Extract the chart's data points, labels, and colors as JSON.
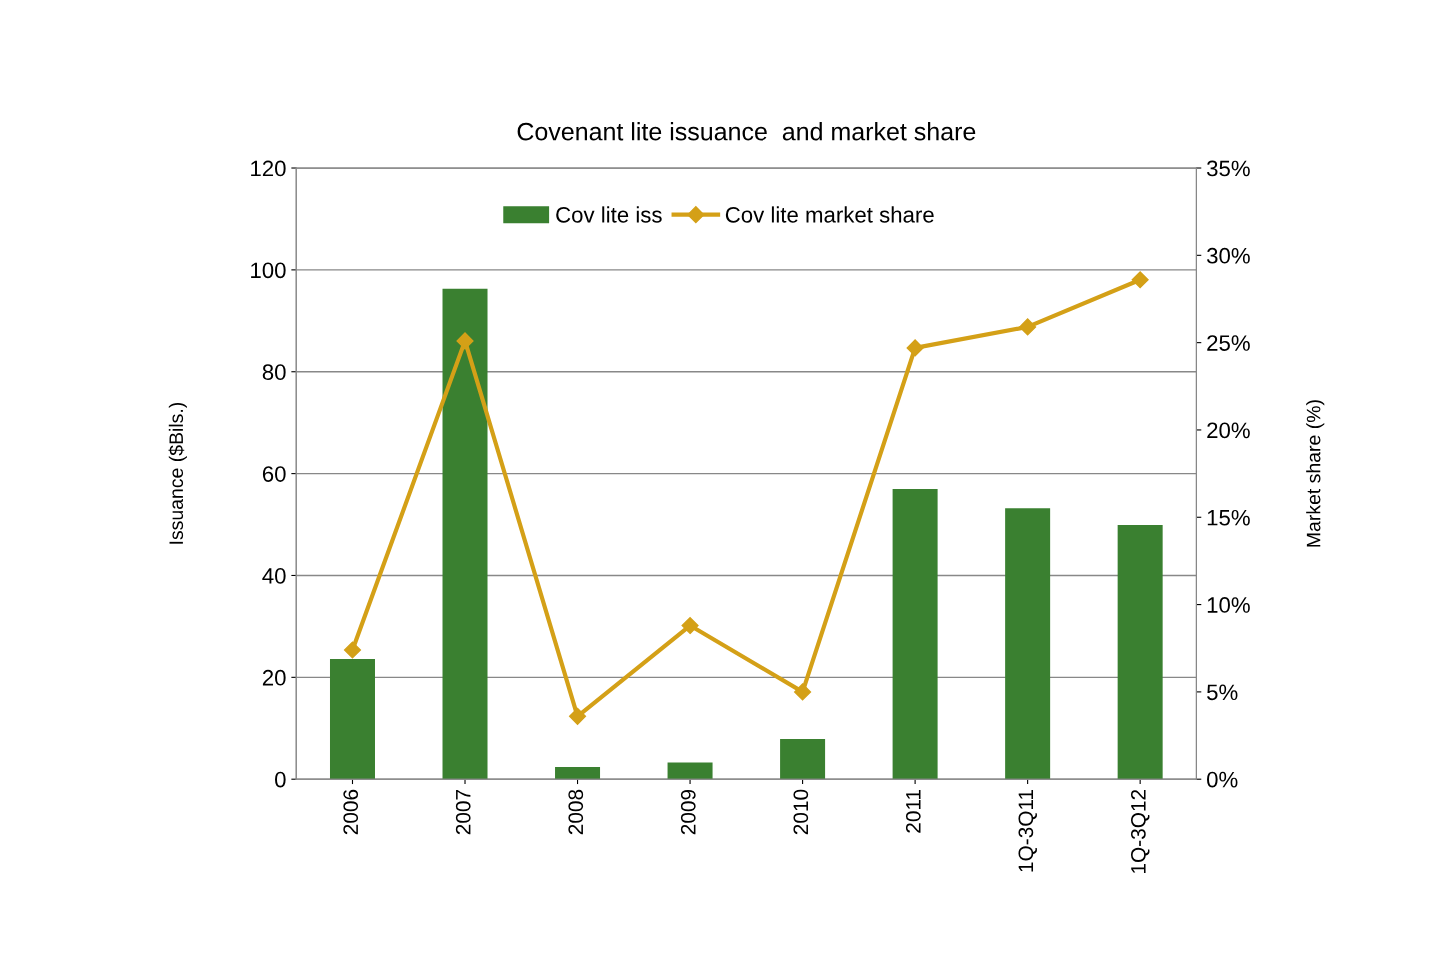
{
  "chart_data": {
    "type": "bar",
    "title": "Covenant lite issuance  and market share",
    "ylabel": "Issuance ($Bils.)",
    "y2label": "Market share (%)",
    "categories": [
      "2006",
      "2007",
      "2008",
      "2009",
      "2010",
      "2011",
      "1Q-3Q11",
      "1Q-3Q12"
    ],
    "series": [
      {
        "name": "Cov lite iss",
        "color": "#3a8030",
        "values": [
          23.6,
          96.3,
          2.4,
          3.3,
          7.9,
          57.0,
          53.2,
          49.9
        ]
      },
      {
        "name": "Cov lite market share",
        "type": "line",
        "axis": "y2",
        "color": "#d4a017",
        "marker": "diamond",
        "values": [
          7.4,
          25.1,
          3.6,
          8.8,
          5.0,
          24.7,
          25.9,
          28.6
        ]
      }
    ],
    "ylim": [
      0,
      120
    ],
    "yticks": [
      0,
      20,
      40,
      60,
      80,
      100,
      120
    ],
    "y2lim": [
      0,
      35
    ],
    "y2ticks": [
      {
        "value": 0,
        "label": "0%"
      },
      {
        "value": 5,
        "label": "5%"
      },
      {
        "value": 10,
        "label": "10%"
      },
      {
        "value": 15,
        "label": "15%"
      },
      {
        "value": 20,
        "label": "20%"
      },
      {
        "value": 25,
        "label": "25%"
      },
      {
        "value": 30,
        "label": "30%"
      },
      {
        "value": 35,
        "label": "35%"
      }
    ],
    "grid": "y",
    "legend": "top"
  }
}
